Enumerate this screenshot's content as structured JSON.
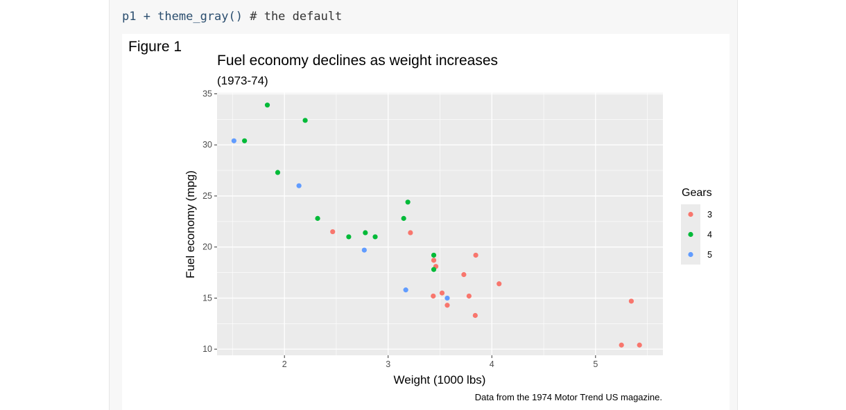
{
  "code": {
    "ident": "p1 + theme_gray()",
    "comment": " # the default"
  },
  "figure": {
    "label": "Figure 1"
  },
  "chart_data": {
    "type": "scatter",
    "title": "Fuel economy declines as weight increases",
    "subtitle": "(1973-74)",
    "xlabel": "Weight (1000 lbs)",
    "ylabel": "Fuel economy (mpg)",
    "caption": "Data from the 1974 Motor Trend US magazine.",
    "xlim": [
      1.35,
      5.65
    ],
    "ylim": [
      9.4,
      35.1
    ],
    "xticks": [
      2,
      3,
      4,
      5
    ],
    "yticks": [
      10,
      15,
      20,
      25,
      30,
      35
    ],
    "grid": true,
    "legend": {
      "title": "Gears",
      "placement": "right"
    },
    "series": [
      {
        "name": "3",
        "color": "#F8766D",
        "points": [
          [
            3.215,
            21.4
          ],
          [
            3.44,
            18.7
          ],
          [
            3.46,
            18.1
          ],
          [
            3.57,
            14.3
          ],
          [
            4.07,
            16.4
          ],
          [
            3.73,
            17.3
          ],
          [
            3.78,
            15.2
          ],
          [
            5.25,
            10.4
          ],
          [
            5.424,
            10.4
          ],
          [
            5.345,
            14.7
          ],
          [
            2.465,
            21.5
          ],
          [
            3.52,
            15.5
          ],
          [
            3.435,
            15.2
          ],
          [
            3.84,
            13.3
          ],
          [
            3.845,
            19.2
          ]
        ]
      },
      {
        "name": "4",
        "color": "#00BA38",
        "points": [
          [
            2.62,
            21.0
          ],
          [
            2.875,
            21.0
          ],
          [
            2.32,
            22.8
          ],
          [
            3.19,
            24.4
          ],
          [
            3.15,
            22.8
          ],
          [
            3.44,
            19.2
          ],
          [
            3.44,
            17.8
          ],
          [
            2.2,
            32.4
          ],
          [
            1.615,
            30.4
          ],
          [
            1.835,
            33.9
          ],
          [
            1.935,
            27.3
          ],
          [
            2.78,
            21.4
          ]
        ]
      },
      {
        "name": "5",
        "color": "#619CFF",
        "points": [
          [
            2.14,
            26.0
          ],
          [
            1.513,
            30.4
          ],
          [
            3.17,
            15.8
          ],
          [
            2.77,
            19.7
          ],
          [
            3.57,
            15.0
          ]
        ]
      }
    ]
  }
}
